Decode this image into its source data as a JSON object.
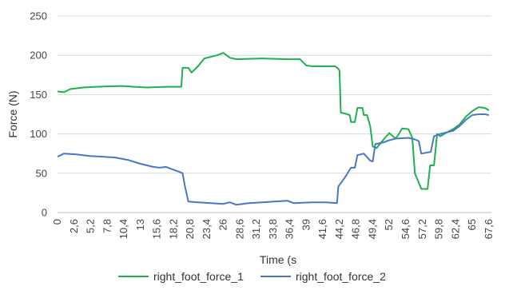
{
  "chart_data": {
    "type": "line",
    "xlabel": "Time (s",
    "ylabel": "Force (N)",
    "ylim": [
      0,
      250
    ],
    "xlim": [
      0,
      68
    ],
    "y_ticks": [
      0,
      50,
      100,
      150,
      200,
      250
    ],
    "x_ticks": [
      0,
      2.6,
      5.2,
      7.8,
      10.4,
      13,
      15.6,
      18.2,
      20.8,
      23.4,
      26,
      28.6,
      31.2,
      33.8,
      36.4,
      39,
      41.6,
      44.2,
      46.8,
      49.4,
      52,
      54.6,
      57.2,
      59.8,
      62.4,
      65,
      67.6
    ],
    "x_tick_labels": [
      "0",
      "2,6",
      "5,2",
      "7,8",
      "10,4",
      "13",
      "15,6",
      "18,2",
      "20,8",
      "23,4",
      "26",
      "28,6",
      "31,2",
      "33,8",
      "36,4",
      "39",
      "41,6",
      "44,2",
      "46,8",
      "49,4",
      "52",
      "54,6",
      "57,2",
      "59,8",
      "62,4",
      "65",
      "67,6"
    ],
    "grid": true,
    "legend_position": "bottom",
    "series": [
      {
        "name": "right_foot_force_1",
        "color": "#1fb04f",
        "points": [
          [
            0,
            154
          ],
          [
            1,
            153
          ],
          [
            2,
            157
          ],
          [
            4,
            159
          ],
          [
            6,
            160
          ],
          [
            10,
            161
          ],
          [
            12,
            160
          ],
          [
            14,
            159
          ],
          [
            17,
            160
          ],
          [
            19,
            160
          ],
          [
            19.4,
            160
          ],
          [
            19.6,
            184
          ],
          [
            20.5,
            184
          ],
          [
            21,
            178
          ],
          [
            22,
            186
          ],
          [
            23,
            196
          ],
          [
            25,
            200
          ],
          [
            26,
            203
          ],
          [
            27,
            197
          ],
          [
            28,
            195
          ],
          [
            32,
            196
          ],
          [
            36,
            195
          ],
          [
            38,
            195
          ],
          [
            39,
            187
          ],
          [
            40,
            186
          ],
          [
            42,
            186
          ],
          [
            43.5,
            186
          ],
          [
            44,
            183
          ],
          [
            44.2,
            180
          ],
          [
            44.4,
            127
          ],
          [
            45,
            126
          ],
          [
            45.8,
            124
          ],
          [
            46,
            115
          ],
          [
            46.6,
            115
          ],
          [
            47,
            133
          ],
          [
            47.8,
            133
          ],
          [
            48,
            124
          ],
          [
            48.5,
            124
          ],
          [
            49,
            110
          ],
          [
            49.4,
            84
          ],
          [
            50,
            82
          ],
          [
            51,
            92
          ],
          [
            52,
            101
          ],
          [
            53,
            94
          ],
          [
            53.5,
            100
          ],
          [
            54,
            107
          ],
          [
            55,
            106
          ],
          [
            55.6,
            95
          ],
          [
            56,
            50
          ],
          [
            57,
            30
          ],
          [
            58,
            30
          ],
          [
            58.4,
            60
          ],
          [
            59,
            60
          ],
          [
            59.5,
            100
          ],
          [
            60,
            97
          ],
          [
            61,
            102
          ],
          [
            62,
            106
          ],
          [
            63,
            112
          ],
          [
            64,
            122
          ],
          [
            65,
            129
          ],
          [
            66,
            134
          ],
          [
            67,
            133
          ],
          [
            67.6,
            130
          ]
        ]
      },
      {
        "name": "right_foot_force_2",
        "color": "#4a76c8",
        "points": [
          [
            0,
            71
          ],
          [
            0.5,
            73
          ],
          [
            1,
            75
          ],
          [
            3,
            74
          ],
          [
            5,
            72
          ],
          [
            7,
            71
          ],
          [
            9,
            70
          ],
          [
            11,
            67
          ],
          [
            13,
            62
          ],
          [
            15,
            58
          ],
          [
            16,
            57
          ],
          [
            17,
            58
          ],
          [
            18,
            55
          ],
          [
            19,
            52
          ],
          [
            19.6,
            50
          ],
          [
            20,
            32
          ],
          [
            20.5,
            14
          ],
          [
            22,
            13
          ],
          [
            24,
            12
          ],
          [
            26,
            11
          ],
          [
            27,
            13
          ],
          [
            28,
            10
          ],
          [
            30,
            12
          ],
          [
            32,
            13
          ],
          [
            34,
            14
          ],
          [
            36,
            15
          ],
          [
            37,
            12
          ],
          [
            40,
            13
          ],
          [
            42,
            13
          ],
          [
            43.8,
            12
          ],
          [
            44,
            33
          ],
          [
            45,
            44
          ],
          [
            46,
            57
          ],
          [
            46.6,
            57
          ],
          [
            47,
            73
          ],
          [
            48,
            75
          ],
          [
            49,
            66
          ],
          [
            49.4,
            65
          ],
          [
            49.8,
            87
          ],
          [
            51,
            89
          ],
          [
            52,
            92
          ],
          [
            53,
            94
          ],
          [
            55,
            95
          ],
          [
            56,
            93
          ],
          [
            56.6,
            91
          ],
          [
            57,
            75
          ],
          [
            58.5,
            77
          ],
          [
            59,
            97
          ],
          [
            60,
            100
          ],
          [
            62,
            104
          ],
          [
            63,
            110
          ],
          [
            64,
            118
          ],
          [
            65,
            124
          ],
          [
            66,
            125
          ],
          [
            67,
            125
          ],
          [
            67.6,
            124
          ]
        ]
      }
    ]
  }
}
